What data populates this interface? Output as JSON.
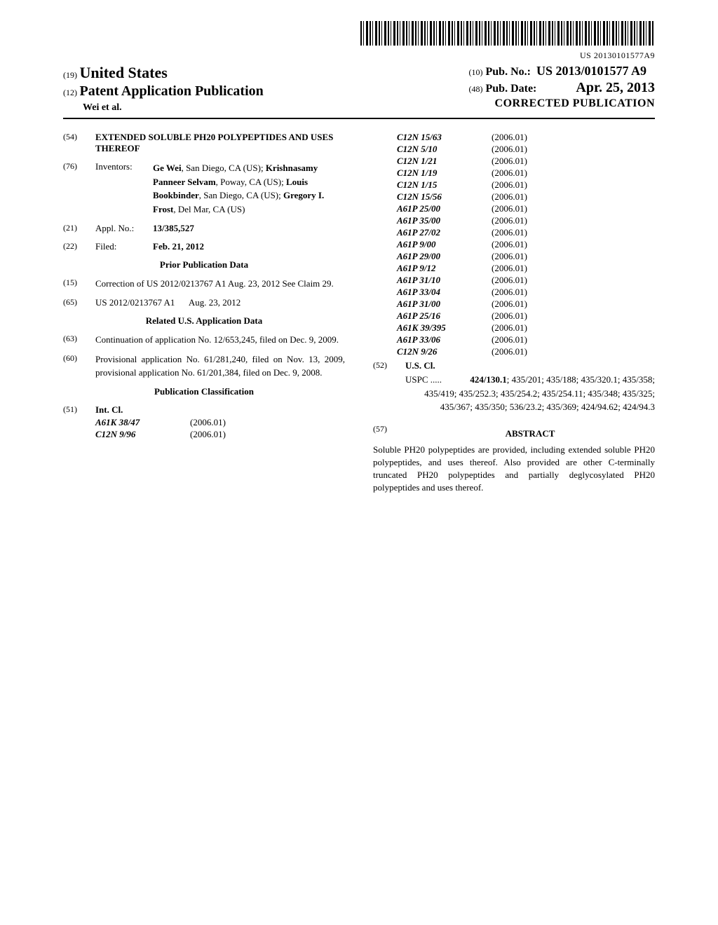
{
  "barcode_number": "US 20130101577A9",
  "header": {
    "inid19": "(19)",
    "country": "United States",
    "inid12": "(12)",
    "pub_type": "Patent Application Publication",
    "authors": "Wei et al.",
    "inid10": "(10)",
    "pub_no_label": "Pub. No.:",
    "pub_no_value": "US 2013/0101577 A9",
    "inid48": "(48)",
    "pub_date_label": "Pub. Date:",
    "pub_date_value": "Apr. 25, 2013",
    "corrected": "CORRECTED PUBLICATION"
  },
  "left": {
    "f54_label": "(54)",
    "f54_title": "EXTENDED SOLUBLE PH20 POLYPEPTIDES AND USES THEREOF",
    "f76_label": "(76)",
    "f76_name": "Inventors:",
    "inventors": [
      {
        "name": "Ge Wei",
        "loc": ", San Diego, CA (US); "
      },
      {
        "name": "Krishnasamy Panneer Selvam",
        "loc": ", Poway, CA (US); "
      },
      {
        "name": "Louis Bookbinder",
        "loc": ", San Diego, CA (US); "
      },
      {
        "name": "Gregory I. Frost",
        "loc": ", Del Mar, CA (US)"
      }
    ],
    "f21_label": "(21)",
    "f21_name": "Appl. No.:",
    "f21_value": "13/385,527",
    "f22_label": "(22)",
    "f22_name": "Filed:",
    "f22_value": "Feb. 21, 2012",
    "prior_pub_header": "Prior Publication Data",
    "f15_label": "(15)",
    "f15_text": "Correction of US 2012/0213767 A1 Aug. 23, 2012 See Claim 29.",
    "f65_label": "(65)",
    "f65_text1": "US 2012/0213767 A1",
    "f65_text2": "Aug. 23, 2012",
    "related_header": "Related U.S. Application Data",
    "f63_label": "(63)",
    "f63_text": "Continuation of application No. 12/653,245, filed on Dec. 9, 2009.",
    "f60_label": "(60)",
    "f60_text": "Provisional application No. 61/281,240, filed on Nov. 13, 2009, provisional application No. 61/201,384, filed on Dec. 9, 2008.",
    "pub_class_header": "Publication Classification",
    "f51_label": "(51)",
    "f51_name": "Int. Cl.",
    "ipc_left": [
      {
        "code": "A61K 38/47",
        "year": "(2006.01)"
      },
      {
        "code": "C12N 9/96",
        "year": "(2006.01)"
      }
    ]
  },
  "right": {
    "ipc_right": [
      {
        "code": "C12N 15/63",
        "year": "(2006.01)"
      },
      {
        "code": "C12N 5/10",
        "year": "(2006.01)"
      },
      {
        "code": "C12N 1/21",
        "year": "(2006.01)"
      },
      {
        "code": "C12N 1/19",
        "year": "(2006.01)"
      },
      {
        "code": "C12N 1/15",
        "year": "(2006.01)"
      },
      {
        "code": "C12N 15/56",
        "year": "(2006.01)"
      },
      {
        "code": "A61P 25/00",
        "year": "(2006.01)"
      },
      {
        "code": "A61P 35/00",
        "year": "(2006.01)"
      },
      {
        "code": "A61P 27/02",
        "year": "(2006.01)"
      },
      {
        "code": "A61P 9/00",
        "year": "(2006.01)"
      },
      {
        "code": "A61P 29/00",
        "year": "(2006.01)"
      },
      {
        "code": "A61P 9/12",
        "year": "(2006.01)"
      },
      {
        "code": "A61P 31/10",
        "year": "(2006.01)"
      },
      {
        "code": "A61P 33/04",
        "year": "(2006.01)"
      },
      {
        "code": "A61P 31/00",
        "year": "(2006.01)"
      },
      {
        "code": "A61P 25/16",
        "year": "(2006.01)"
      },
      {
        "code": "A61K 39/395",
        "year": "(2006.01)"
      },
      {
        "code": "A61P 33/06",
        "year": "(2006.01)"
      },
      {
        "code": "C12N 9/26",
        "year": "(2006.01)"
      }
    ],
    "f52_label": "(52)",
    "f52_name": "U.S. Cl.",
    "uspc_label": "USPC",
    "uspc_bold": "424/130.1",
    "uspc_rest": "; 435/201; 435/188; 435/320.1; 435/358; 435/419; 435/252.3; 435/254.2; 435/254.11; 435/348; 435/325; 435/367; 435/350; 536/23.2; 435/369; 424/94.62; 424/94.3",
    "f57_label": "(57)",
    "abstract_header": "ABSTRACT",
    "abstract_text": "Soluble PH20 polypeptides are provided, including extended soluble PH20 polypeptides, and uses thereof. Also provided are other C-terminally truncated PH20 polypeptides and partially deglycosylated PH20 polypeptides and uses thereof."
  }
}
